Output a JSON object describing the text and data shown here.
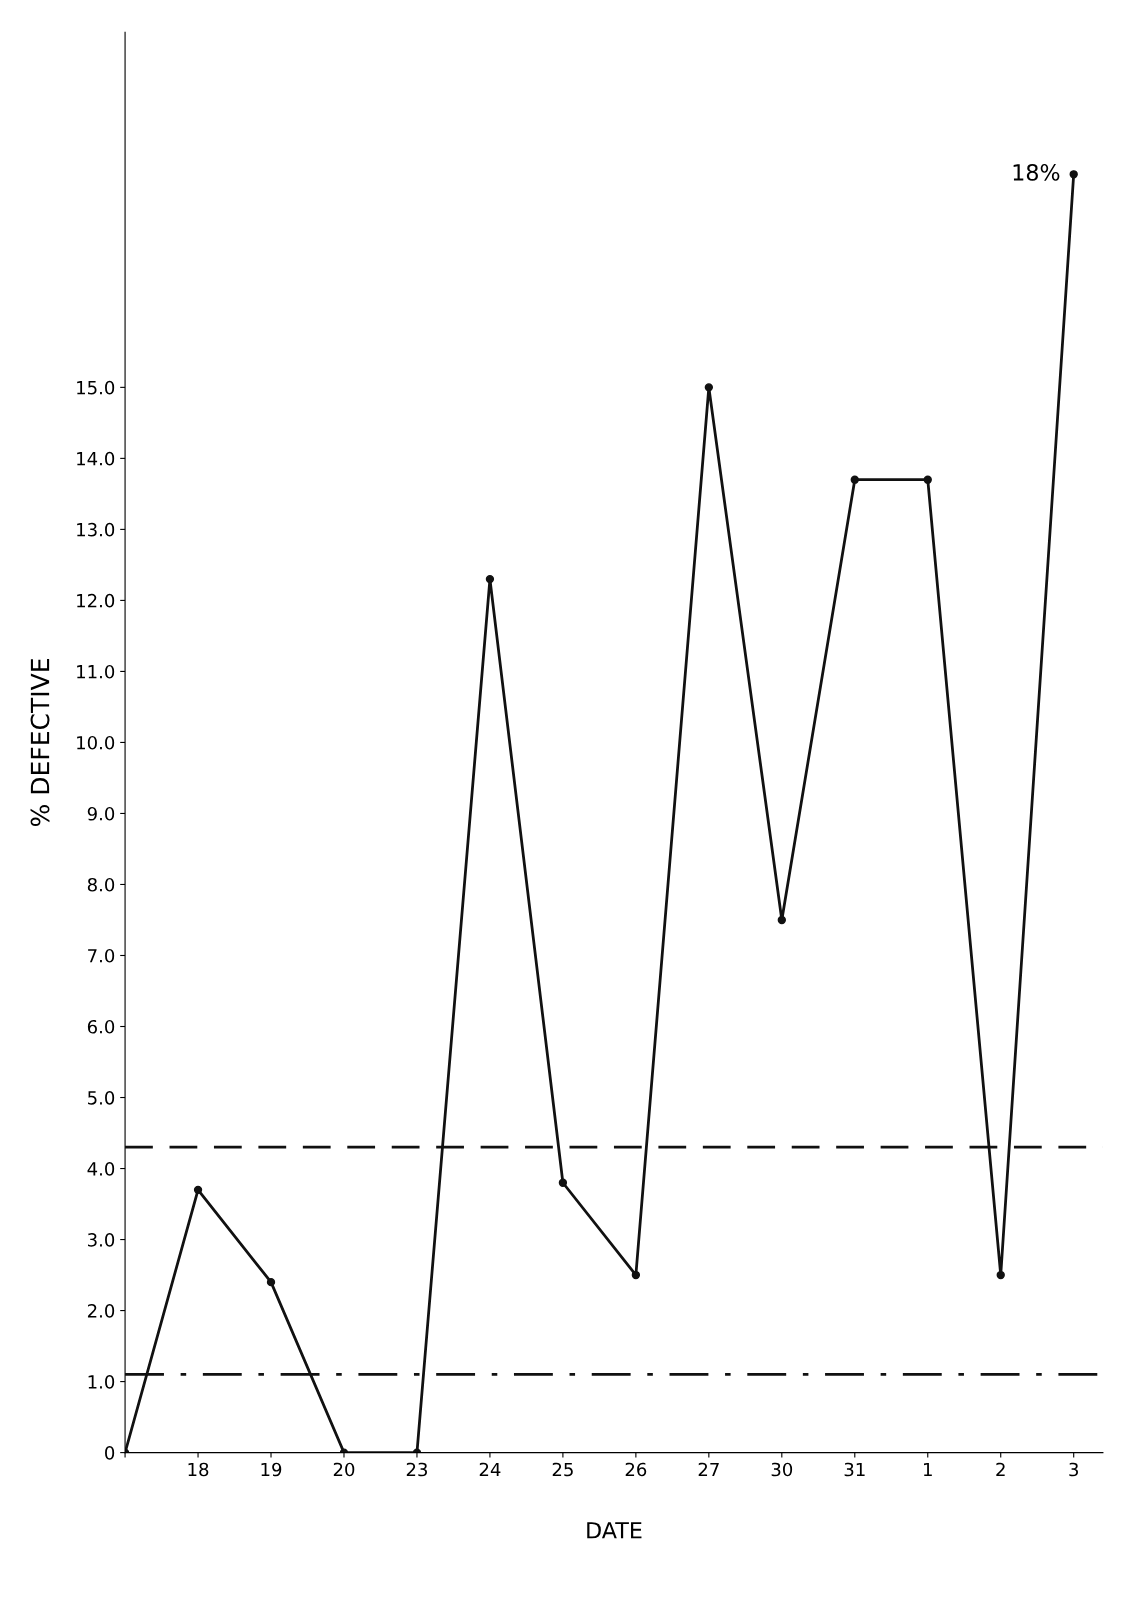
{
  "chart_data": {
    "type": "line",
    "xlabel": "DATE",
    "ylabel": "% DEFECTIVE",
    "categories": [
      null,
      "18",
      "19",
      "20",
      "23",
      "24",
      "25",
      "26",
      "27",
      "30",
      "31",
      "1",
      "2",
      "3"
    ],
    "series": [
      {
        "color": "#111111",
        "values": [
          0,
          3.7,
          2.4,
          0,
          0,
          12.3,
          3.8,
          2.5,
          15.0,
          7.5,
          13.7,
          13.7,
          2.5,
          18.0
        ]
      }
    ],
    "ylim": [
      0,
      20
    ],
    "yticks": [
      0,
      {
        "value": 1,
        "label": "1.0"
      },
      {
        "value": 2,
        "label": "2.0"
      },
      {
        "value": 3,
        "label": "3.0"
      },
      {
        "value": 4,
        "label": "4.0"
      },
      {
        "value": 5,
        "label": "5.0"
      },
      {
        "value": 6,
        "label": "6.0"
      },
      {
        "value": 7,
        "label": "7.0"
      },
      {
        "value": 8,
        "label": "8.0"
      },
      {
        "value": 9,
        "label": "9.0"
      },
      {
        "value": 10,
        "label": "10.0"
      },
      {
        "value": 11,
        "label": "11.0"
      },
      {
        "value": 12,
        "label": "12.0"
      },
      {
        "value": 13,
        "label": "13.0"
      },
      {
        "value": 14,
        "label": "14.0"
      },
      {
        "value": 15,
        "label": "15.0"
      }
    ],
    "ref_lines": [
      {
        "axis": "y",
        "value": 4.3,
        "color": "#111111",
        "line_style": "dashed"
      },
      {
        "axis": "y",
        "value": 1.1,
        "color": "#111111",
        "line_style": "dashdot"
      }
    ],
    "annotations": [
      {
        "text": "18%",
        "x": "3",
        "y": 18.0
      }
    ],
    "marker": "circle",
    "line_style": "solid",
    "grid": false,
    "legend": false
  }
}
